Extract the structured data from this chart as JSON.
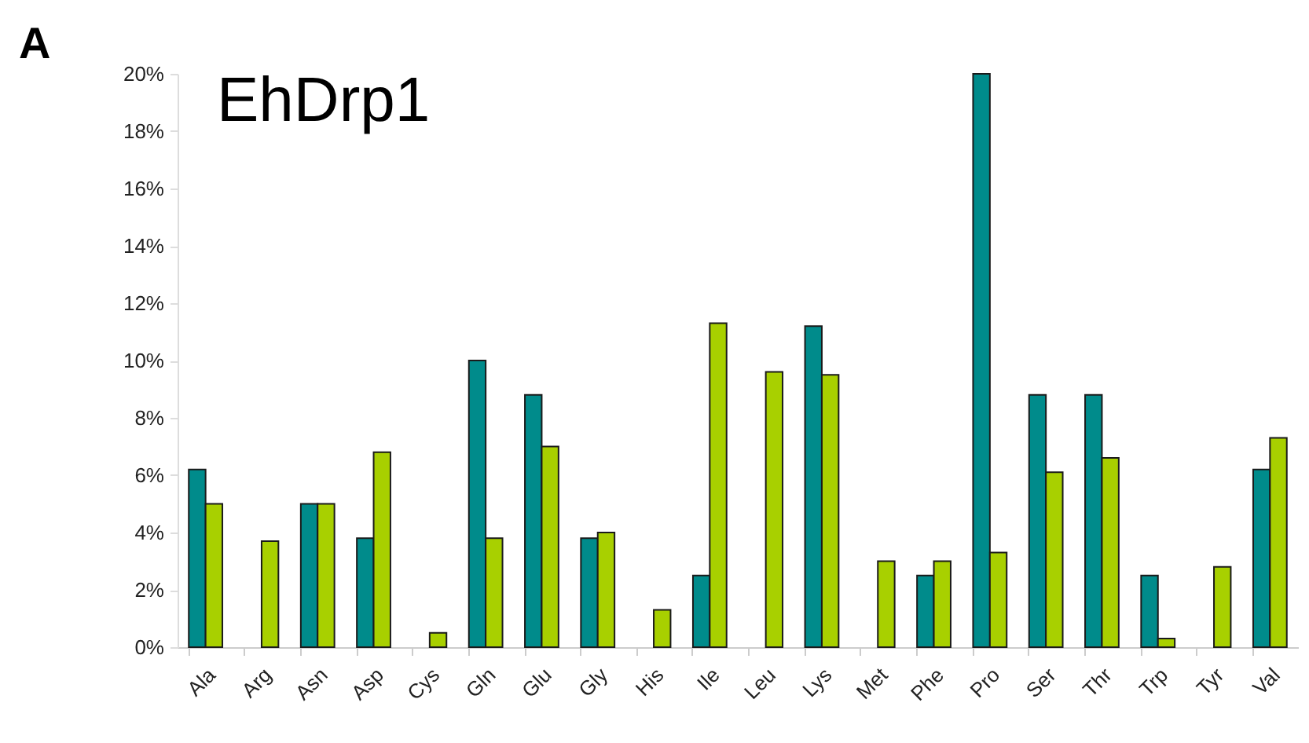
{
  "chart_data": {
    "type": "bar",
    "title": "EhDrp1",
    "annotations": [
      "A"
    ],
    "categories": [
      "Ala",
      "Arg",
      "Asn",
      "Asp",
      "Cys",
      "Gln",
      "Glu",
      "Gly",
      "His",
      "Ile",
      "Leu",
      "Lys",
      "Met",
      "Phe",
      "Pro",
      "Ser",
      "Thr",
      "Trp",
      "Tyr",
      "Val"
    ],
    "series": [
      {
        "color": "#008b8b",
        "values": [
          6.2,
          null,
          5.0,
          3.8,
          null,
          10.0,
          8.8,
          3.8,
          null,
          2.5,
          null,
          11.2,
          null,
          2.5,
          20.0,
          8.8,
          8.8,
          2.5,
          null,
          6.2
        ]
      },
      {
        "color": "#a8d000",
        "values": [
          5.0,
          3.7,
          5.0,
          6.8,
          0.5,
          3.8,
          7.0,
          4.0,
          1.3,
          11.3,
          9.6,
          9.5,
          3.0,
          3.0,
          3.3,
          6.1,
          6.6,
          0.3,
          2.8,
          7.3
        ]
      }
    ],
    "ylim": [
      0,
      20
    ],
    "yticks": [
      {
        "value": 0,
        "label": "0%"
      },
      {
        "value": 2,
        "label": "2%"
      },
      {
        "value": 4,
        "label": "4%"
      },
      {
        "value": 6,
        "label": "6%"
      },
      {
        "value": 8,
        "label": "8%"
      },
      {
        "value": 10,
        "label": "10%"
      },
      {
        "value": 12,
        "label": "12%"
      },
      {
        "value": 14,
        "label": "14%"
      },
      {
        "value": 16,
        "label": "16%"
      },
      {
        "value": 18,
        "label": "18%"
      },
      {
        "value": 20,
        "label": "20%"
      }
    ],
    "grid": false,
    "legend": false
  }
}
